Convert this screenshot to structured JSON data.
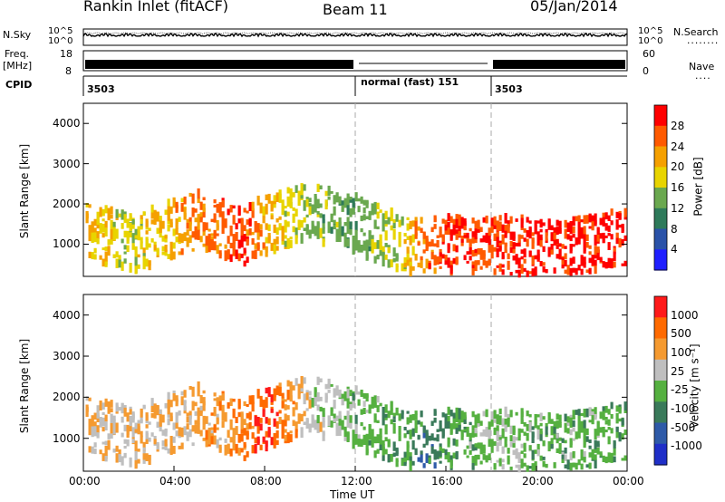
{
  "header": {
    "title": "Rankin Inlet (fitACF)",
    "beam": "Beam 11",
    "date": "05/Jan/2014"
  },
  "top_panels": {
    "nsky_label": "N.Sky",
    "nsky_ticks": [
      "10^5",
      "10^0"
    ],
    "nsearch_label": "N.Search",
    "nsearch_ticks": [
      "10^5",
      "10^0"
    ],
    "dotted_marker": "........",
    "freq_label": "Freq.",
    "freq_unit": "[MHz]",
    "freq_ticks": [
      "18",
      "8"
    ],
    "nave_label": "Nave",
    "nave_marker": "....",
    "nave_ticks": [
      "60",
      "0"
    ],
    "cpid_label": "CPID",
    "cpid_segments": [
      {
        "label": "3503",
        "start_hour": 0,
        "end_hour": 12
      },
      {
        "label": "normal (fast) 151",
        "start_hour": 12,
        "end_hour": 18
      },
      {
        "label": "3503",
        "start_hour": 18,
        "end_hour": 24
      }
    ]
  },
  "x_axis": {
    "label": "Time UT",
    "ticks": [
      "00:00",
      "04:00",
      "08:00",
      "12:00",
      "16:00",
      "20:00",
      "00:00"
    ]
  },
  "power_panel": {
    "ylabel": "Slant Range [km]",
    "y_ticks": [
      "4000",
      "3000",
      "2000",
      "1000"
    ],
    "colorbar_label": "Power [dB]",
    "colorbar_ticks": [
      "28",
      "24",
      "20",
      "16",
      "12",
      "8",
      "4"
    ]
  },
  "velocity_panel": {
    "ylabel": "Slant Range [km]",
    "y_ticks": [
      "4000",
      "3000",
      "2000",
      "1000"
    ],
    "colorbar_label": "Velocity [m s⁻¹]",
    "colorbar_ticks": [
      "1000",
      "500",
      "100",
      "25",
      "-25",
      "-100",
      "-500",
      "-1000"
    ]
  },
  "colors": {
    "power_scale": [
      "#1f1fff",
      "#2a52a8",
      "#2e7a5a",
      "#6aa84f",
      "#e8d400",
      "#f5a000",
      "#ff5a00",
      "#ff0000"
    ],
    "velocity_scale": [
      "#1f2fc8",
      "#2e5aa8",
      "#3a7a5a",
      "#55b040",
      "#bfbfbf",
      "#f59a30",
      "#ff6a00",
      "#ff1a1a"
    ]
  },
  "chart_data": [
    {
      "type": "heatmap",
      "title": "Power [dB]",
      "xlabel": "Time UT",
      "ylabel": "Slant Range [km]",
      "xlim": [
        0,
        24
      ],
      "ylim": [
        200,
        4500
      ],
      "clim": [
        0,
        30
      ],
      "series": [
        {
          "x": [
            0,
            2,
            5,
            7,
            8,
            10,
            12,
            14,
            15,
            16,
            18,
            20,
            22,
            24
          ],
          "y": [
            1400,
            1000,
            1600,
            1200,
            1500,
            1800,
            1500,
            1000,
            900,
            1000,
            1000,
            900,
            1000,
            1200
          ],
          "values": [
            20,
            16,
            22,
            26,
            20,
            14,
            12,
            16,
            24,
            26,
            26,
            28,
            28,
            26
          ]
        }
      ]
    },
    {
      "type": "heatmap",
      "title": "Velocity [m s⁻¹]",
      "xlabel": "Time UT",
      "ylabel": "Slant Range [km]",
      "xlim": [
        0,
        24
      ],
      "ylim": [
        200,
        4500
      ],
      "clim": [
        -1000,
        1000
      ],
      "series": [
        {
          "x": [
            0,
            2,
            5,
            7,
            8,
            10,
            12,
            14,
            15,
            16,
            18,
            20,
            22,
            24
          ],
          "y": [
            1400,
            1000,
            1600,
            1200,
            1500,
            1800,
            1500,
            1000,
            900,
            1000,
            1000,
            900,
            1000,
            1200
          ],
          "values": [
            300,
            200,
            300,
            500,
            800,
            150,
            -100,
            -200,
            -400,
            -300,
            20,
            -150,
            -100,
            -300
          ]
        }
      ]
    }
  ]
}
